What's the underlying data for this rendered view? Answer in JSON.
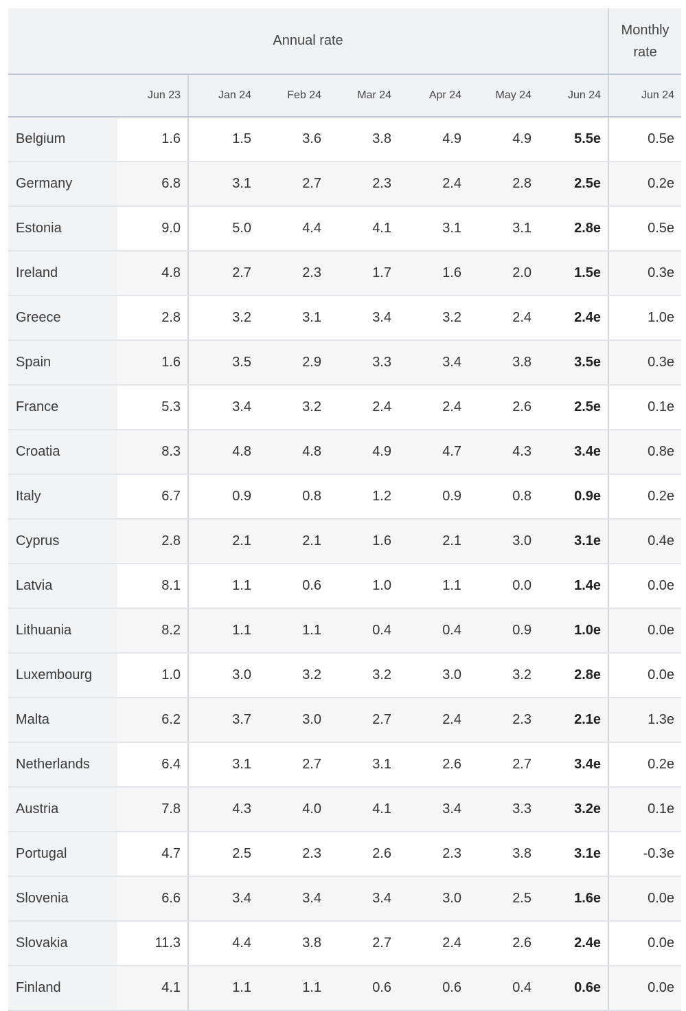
{
  "header": {
    "annual_label": "Annual rate",
    "monthly_label_line1": "Monthly",
    "monthly_label_line2": "rate",
    "months": [
      "Jun 23",
      "Jan 24",
      "Feb 24",
      "Mar 24",
      "Apr 24",
      "May 24",
      "Jun 24"
    ],
    "monthly_month": "Jun 24"
  },
  "rows": [
    {
      "country": "Belgium",
      "values": [
        "1.6",
        "1.5",
        "3.6",
        "3.8",
        "4.9",
        "4.9",
        "5.5e"
      ],
      "monthly": "0.5e"
    },
    {
      "country": "Germany",
      "values": [
        "6.8",
        "3.1",
        "2.7",
        "2.3",
        "2.4",
        "2.8",
        "2.5e"
      ],
      "monthly": "0.2e"
    },
    {
      "country": "Estonia",
      "values": [
        "9.0",
        "5.0",
        "4.4",
        "4.1",
        "3.1",
        "3.1",
        "2.8e"
      ],
      "monthly": "0.5e"
    },
    {
      "country": "Ireland",
      "values": [
        "4.8",
        "2.7",
        "2.3",
        "1.7",
        "1.6",
        "2.0",
        "1.5e"
      ],
      "monthly": "0.3e"
    },
    {
      "country": "Greece",
      "values": [
        "2.8",
        "3.2",
        "3.1",
        "3.4",
        "3.2",
        "2.4",
        "2.4e"
      ],
      "monthly": "1.0e"
    },
    {
      "country": "Spain",
      "values": [
        "1.6",
        "3.5",
        "2.9",
        "3.3",
        "3.4",
        "3.8",
        "3.5e"
      ],
      "monthly": "0.3e"
    },
    {
      "country": "France",
      "values": [
        "5.3",
        "3.4",
        "3.2",
        "2.4",
        "2.4",
        "2.6",
        "2.5e"
      ],
      "monthly": "0.1e"
    },
    {
      "country": "Croatia",
      "values": [
        "8.3",
        "4.8",
        "4.8",
        "4.9",
        "4.7",
        "4.3",
        "3.4e"
      ],
      "monthly": "0.8e"
    },
    {
      "country": "Italy",
      "values": [
        "6.7",
        "0.9",
        "0.8",
        "1.2",
        "0.9",
        "0.8",
        "0.9e"
      ],
      "monthly": "0.2e"
    },
    {
      "country": "Cyprus",
      "values": [
        "2.8",
        "2.1",
        "2.1",
        "1.6",
        "2.1",
        "3.0",
        "3.1e"
      ],
      "monthly": "0.4e"
    },
    {
      "country": "Latvia",
      "values": [
        "8.1",
        "1.1",
        "0.6",
        "1.0",
        "1.1",
        "0.0",
        "1.4e"
      ],
      "monthly": "0.0e"
    },
    {
      "country": "Lithuania",
      "values": [
        "8.2",
        "1.1",
        "1.1",
        "0.4",
        "0.4",
        "0.9",
        "1.0e"
      ],
      "monthly": "0.0e"
    },
    {
      "country": "Luxembourg",
      "values": [
        "1.0",
        "3.0",
        "3.2",
        "3.2",
        "3.0",
        "3.2",
        "2.8e"
      ],
      "monthly": "0.0e"
    },
    {
      "country": "Malta",
      "values": [
        "6.2",
        "3.7",
        "3.0",
        "2.7",
        "2.4",
        "2.3",
        "2.1e"
      ],
      "monthly": "1.3e"
    },
    {
      "country": "Netherlands",
      "values": [
        "6.4",
        "3.1",
        "2.7",
        "3.1",
        "2.6",
        "2.7",
        "3.4e"
      ],
      "monthly": "0.2e"
    },
    {
      "country": "Austria",
      "values": [
        "7.8",
        "4.3",
        "4.0",
        "4.1",
        "3.4",
        "3.3",
        "3.2e"
      ],
      "monthly": "0.1e"
    },
    {
      "country": "Portugal",
      "values": [
        "4.7",
        "2.5",
        "2.3",
        "2.6",
        "2.3",
        "3.8",
        "3.1e"
      ],
      "monthly": "-0.3e"
    },
    {
      "country": "Slovenia",
      "values": [
        "6.6",
        "3.4",
        "3.4",
        "3.4",
        "3.0",
        "2.5",
        "1.6e"
      ],
      "monthly": "0.0e"
    },
    {
      "country": "Slovakia",
      "values": [
        "11.3",
        "4.4",
        "3.8",
        "2.7",
        "2.4",
        "2.6",
        "2.4e"
      ],
      "monthly": "0.0e"
    },
    {
      "country": "Finland",
      "values": [
        "4.1",
        "1.1",
        "1.1",
        "0.6",
        "0.6",
        "0.4",
        "0.6e"
      ],
      "monthly": "0.0e"
    }
  ]
}
